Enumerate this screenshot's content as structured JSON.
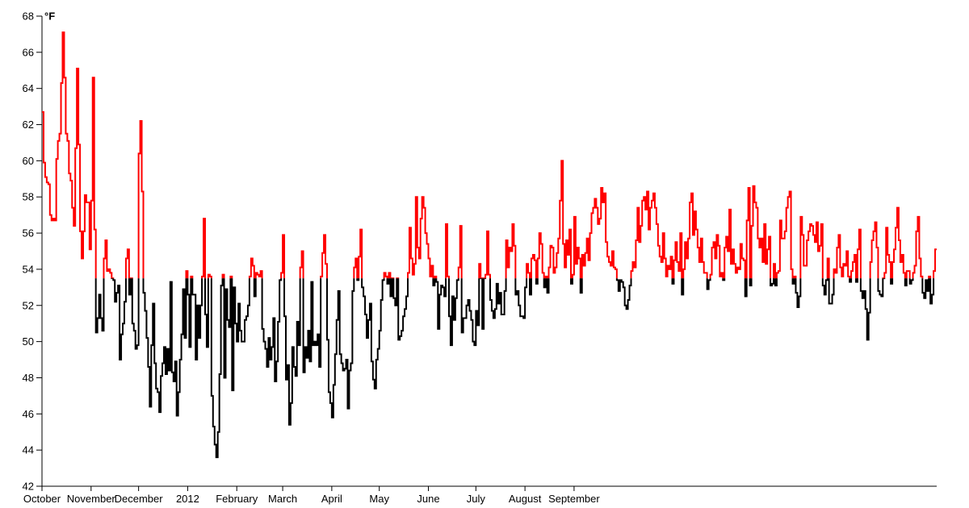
{
  "chart_data": {
    "type": "line",
    "style": "step",
    "unit": "°F",
    "ylim": [
      42,
      68
    ],
    "y_ticks": [
      "42",
      "44",
      "46",
      "48",
      "50",
      "52",
      "54",
      "56",
      "58",
      "60",
      "62",
      "64",
      "66",
      "68"
    ],
    "x_ticks": [
      "October",
      "November",
      "December",
      "2012",
      "February",
      "March",
      "April",
      "May",
      "June",
      "July",
      "August",
      "September"
    ],
    "threshold": 53.5,
    "colors": {
      "above": "#ff0000",
      "below": "#000000"
    },
    "grid": false,
    "series": [
      {
        "values": [
          62.7,
          59.9,
          59.1,
          58.8,
          58.7,
          57.0,
          56.7,
          56.8,
          56.7,
          60.1,
          61.1,
          61.5,
          64.3,
          67.1,
          64.6,
          61.5,
          61.1,
          59.3,
          58.9,
          57.4,
          56.4,
          60.7,
          65.1,
          60.9,
          56.1,
          54.6,
          56.1,
          58.1,
          57.7,
          57.7,
          55.1,
          57.8,
          64.6,
          56.2,
          50.5,
          51.3,
          52.6,
          51.3,
          50.6,
          54.6,
          55.6,
          53.9,
          54.0,
          53.8,
          53.5,
          53.4,
          52.2,
          52.7,
          53.1,
          49.0,
          50.4,
          51.0,
          52.2,
          54.6,
          55.1,
          52.6,
          53.5,
          51.0,
          50.6,
          49.6,
          49.8,
          60.4,
          62.2,
          58.3,
          52.7,
          51.7,
          50.2,
          48.6,
          46.4,
          49.8,
          52.1,
          48.8,
          47.4,
          47.2,
          46.1,
          48.1,
          48.8,
          49.7,
          48.2,
          49.6,
          48.4,
          53.3,
          48.3,
          47.8,
          48.9,
          45.9,
          47.2,
          49.0,
          50.4,
          52.9,
          50.2,
          53.9,
          52.6,
          49.7,
          53.6,
          52.6,
          52.6,
          49.0,
          52.0,
          50.2,
          52.0,
          53.6,
          56.8,
          51.5,
          49.7,
          53.7,
          53.6,
          47.0,
          45.3,
          44.3,
          43.6,
          45.0,
          48.2,
          53.1,
          53.7,
          48.0,
          52.9,
          51.2,
          50.8,
          53.6,
          47.3,
          53.0,
          51.0,
          50.0,
          52.1,
          50.6,
          50.0,
          50.0,
          51.2,
          51.4,
          52.0,
          53.6,
          54.6,
          54.2,
          52.5,
          53.8,
          53.7,
          53.6,
          53.9,
          50.7,
          50.0,
          49.6,
          48.6,
          50.2,
          49.0,
          49.7,
          51.3,
          47.8,
          48.9,
          51.1,
          53.4,
          53.8,
          55.9,
          51.4,
          47.9,
          48.7,
          45.4,
          46.6,
          49.7,
          48.6,
          48.1,
          51.1,
          49.8,
          54.1,
          55.0,
          48.3,
          49.7,
          49.1,
          50.6,
          48.9,
          53.3,
          49.8,
          50.0,
          49.8,
          50.4,
          48.6,
          53.6,
          54.9,
          55.9,
          54.3,
          50.1,
          47.2,
          46.6,
          45.8,
          47.6,
          49.3,
          51.2,
          52.8,
          49.3,
          48.8,
          48.4,
          48.5,
          49.0,
          46.3,
          48.4,
          48.8,
          52.8,
          54.1,
          54.6,
          53.4,
          54.7,
          56.2,
          53.0,
          52.5,
          51.5,
          50.2,
          51.2,
          52.1,
          48.9,
          47.9,
          47.4,
          49.0,
          49.6,
          50.6,
          52.3,
          53.4,
          53.8,
          53.6,
          53.2,
          53.8,
          52.5,
          53.5,
          52.4,
          52.0,
          53.5,
          50.1,
          50.3,
          50.6,
          51.4,
          51.8,
          52.5,
          53.8,
          56.3,
          54.6,
          53.7,
          54.3,
          58.0,
          55.2,
          54.6,
          56.8,
          58.0,
          57.4,
          56.0,
          55.4,
          54.6,
          53.6,
          54.2,
          53.1,
          53.6,
          53.3,
          50.7,
          52.6,
          53.1,
          53.0,
          52.5,
          56.5,
          53.6,
          51.4,
          49.8,
          52.5,
          51.2,
          52.4,
          53.4,
          54.1,
          56.4,
          50.5,
          51.3,
          51.3,
          52.0,
          52.3,
          51.7,
          51.2,
          50.0,
          49.8,
          51.7,
          50.9,
          54.3,
          53.5,
          50.7,
          53.5,
          53.7,
          56.1,
          53.7,
          52.3,
          51.7,
          51.3,
          51.8,
          53.2,
          52.1,
          52.7,
          51.5,
          51.5,
          52.8,
          55.6,
          54.1,
          55.2,
          55.0,
          56.5,
          55.3,
          52.6,
          52.8,
          52.0,
          51.4,
          51.4,
          51.3,
          53.0,
          54.3,
          53.8,
          52.6,
          54.6,
          54.8,
          54.5,
          53.2,
          54.6,
          56.0,
          55.4,
          53.8,
          53.0,
          53.6,
          52.7,
          54.1,
          55.3,
          55.2,
          53.8,
          54.1,
          54.9,
          55.7,
          57.8,
          60.0,
          55.4,
          54.1,
          55.6,
          54.8,
          56.2,
          53.2,
          53.7,
          56.9,
          54.3,
          55.2,
          54.6,
          52.7,
          54.8,
          54.2,
          54.9,
          55.7,
          54.5,
          56.0,
          57.1,
          57.4,
          57.9,
          57.4,
          56.5,
          56.8,
          58.5,
          57.7,
          58.2,
          55.5,
          54.7,
          54.4,
          54.2,
          55.0,
          54.1,
          54.0,
          53.4,
          52.8,
          53.4,
          53.3,
          53.0,
          52.0,
          51.8,
          52.3,
          53.1,
          53.9,
          54.4,
          54.1,
          55.6,
          57.4,
          55.5,
          56.4,
          57.8,
          58.0,
          57.3,
          58.3,
          56.2,
          57.4,
          57.8,
          58.2,
          57.4,
          56.5,
          55.3,
          54.7,
          54.4,
          56.0,
          54.6,
          53.6,
          54.2,
          54.0,
          54.7,
          53.2,
          54.5,
          55.5,
          54.4,
          53.9,
          56.0,
          52.6,
          54.0,
          55.5,
          54.6,
          55.7,
          57.7,
          58.2,
          55.9,
          57.2,
          56.2,
          55.2,
          54.4,
          55.7,
          54.4,
          53.8,
          53.8,
          52.9,
          53.4,
          53.7,
          55.2,
          55.5,
          54.6,
          55.9,
          55.3,
          53.6,
          53.8,
          53.4,
          55.2,
          55.8,
          55.0,
          57.3,
          54.3,
          55.1,
          54.3,
          53.8,
          54.1,
          54.0,
          55.4,
          54.6,
          54.5,
          52.5,
          56.7,
          58.5,
          53.1,
          56.4,
          58.6,
          57.7,
          57.4,
          55.7,
          55.2,
          55.7,
          54.4,
          56.5,
          54.3,
          55.1,
          55.8,
          53.1,
          53.2,
          54.3,
          53.1,
          53.8,
          53.9,
          56.7,
          55.7,
          55.7,
          56.1,
          57.4,
          58.0,
          58.3,
          54.0,
          53.2,
          53.6,
          52.7,
          51.9,
          52.5,
          56.9,
          55.9,
          54.2,
          54.2,
          55.6,
          56.1,
          56.5,
          56.4,
          55.9,
          55.5,
          56.6,
          55.0,
          55.3,
          56.5,
          53.1,
          52.6,
          53.4,
          54.6,
          52.1,
          52.1,
          52.6,
          54.0,
          53.8,
          55.2,
          55.9,
          54.1,
          53.6,
          54.3,
          54.2,
          55.0,
          53.6,
          53.3,
          53.9,
          54.4,
          54.8,
          53.3,
          55.1,
          56.2,
          52.8,
          52.4,
          52.8,
          51.8,
          50.1,
          51.6,
          54.4,
          55.6,
          56.1,
          56.6,
          55.2,
          52.8,
          52.6,
          52.5,
          53.5,
          53.8,
          56.3,
          54.8,
          54.4,
          53.2,
          54.4,
          55.1,
          56.3,
          57.4,
          55.6,
          54.4,
          54.8,
          53.8,
          53.1,
          53.9,
          53.9,
          53.2,
          53.4,
          53.8,
          54.2,
          56.1,
          56.9,
          54.6,
          53.6,
          52.7,
          52.4,
          53.4,
          52.8,
          53.6,
          52.1,
          52.6,
          53.9,
          55.1
        ]
      }
    ]
  }
}
